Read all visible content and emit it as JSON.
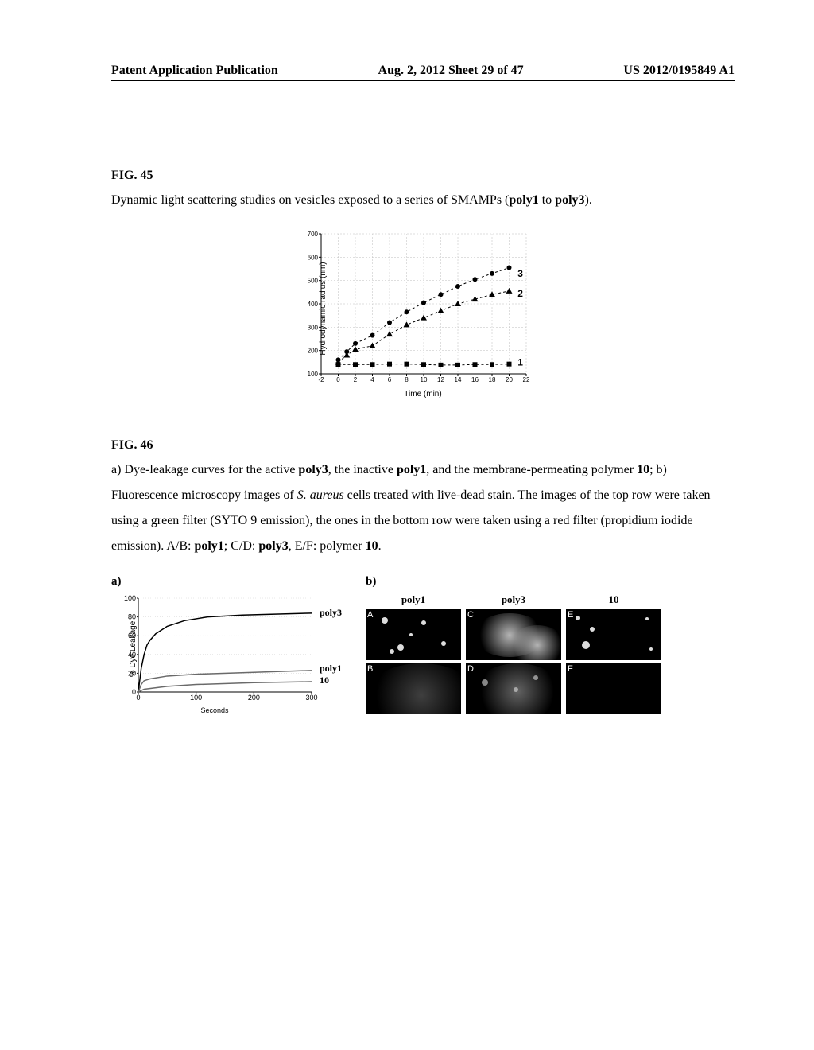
{
  "header": {
    "left": "Patent Application Publication",
    "mid": "Aug. 2, 2012  Sheet 29 of 47",
    "right": "US 2012/0195849 A1"
  },
  "fig45": {
    "label": "FIG. 45",
    "caption_plain_a": "Dynamic light scattering studies on vesicles exposed to a series of SMAMPs (",
    "caption_bold_a": "poly1",
    "caption_plain_b": " to ",
    "caption_bold_b": "poly3",
    "caption_plain_c": ").",
    "chart": {
      "type": "scatter-line",
      "xlabel": "Time (min)",
      "ylabel": "Hydrodynamic radius (nm)",
      "xlim": [
        -2,
        22
      ],
      "ylim": [
        100,
        700
      ],
      "xticks": [
        -2,
        0,
        2,
        4,
        6,
        8,
        10,
        12,
        14,
        16,
        18,
        20,
        22
      ],
      "yticks": [
        100,
        200,
        300,
        400,
        500,
        600,
        700
      ],
      "ytick_labels": [
        "100",
        "200",
        "300",
        "400",
        "500",
        "600",
        "700"
      ],
      "background_color": "#ffffff",
      "grid_color": "#bdbdbd",
      "tick_fontsize": 8,
      "label_fontsize": 10,
      "series": [
        {
          "name": "1",
          "marker": "square",
          "color": "#000000",
          "line_dash": "3,3",
          "points": [
            [
              0,
              140
            ],
            [
              2,
              140
            ],
            [
              4,
              140
            ],
            [
              6,
              142
            ],
            [
              8,
              142
            ],
            [
              10,
              140
            ],
            [
              12,
              138
            ],
            [
              14,
              138
            ],
            [
              16,
              140
            ],
            [
              18,
              140
            ],
            [
              20,
              142
            ]
          ]
        },
        {
          "name": "2",
          "marker": "triangle",
          "color": "#000000",
          "line_dash": "3,3",
          "points": [
            [
              0,
              150
            ],
            [
              1,
              180
            ],
            [
              2,
              205
            ],
            [
              4,
              220
            ],
            [
              6,
              270
            ],
            [
              8,
              310
            ],
            [
              10,
              340
            ],
            [
              12,
              370
            ],
            [
              14,
              400
            ],
            [
              16,
              420
            ],
            [
              18,
              440
            ],
            [
              20,
              455
            ]
          ]
        },
        {
          "name": "3",
          "marker": "circle",
          "color": "#000000",
          "line_dash": "3,3",
          "points": [
            [
              0,
              160
            ],
            [
              1,
              195
            ],
            [
              2,
              230
            ],
            [
              4,
              265
            ],
            [
              6,
              320
            ],
            [
              8,
              365
            ],
            [
              10,
              405
            ],
            [
              12,
              440
            ],
            [
              14,
              475
            ],
            [
              16,
              505
            ],
            [
              18,
              530
            ],
            [
              20,
              555
            ]
          ]
        }
      ],
      "series_labels": [
        {
          "text": "3",
          "x": 21,
          "y": 530
        },
        {
          "text": "2",
          "x": 21,
          "y": 445
        },
        {
          "text": "1",
          "x": 21,
          "y": 150
        }
      ]
    }
  },
  "fig46": {
    "label": "FIG. 46",
    "caption_parts": [
      {
        "t": "a) Dye-leakage curves for the active ",
        "b": false,
        "i": false
      },
      {
        "t": "poly3",
        "b": true,
        "i": false
      },
      {
        "t": ", the inactive ",
        "b": false,
        "i": false
      },
      {
        "t": "poly1",
        "b": true,
        "i": false
      },
      {
        "t": ", and the membrane-permeating polymer ",
        "b": false,
        "i": false
      },
      {
        "t": "10",
        "b": true,
        "i": false
      },
      {
        "t": "; b) Fluorescence microscopy images of ",
        "b": false,
        "i": false
      },
      {
        "t": "S. aureus",
        "b": false,
        "i": true
      },
      {
        "t": " cells treated with live-dead stain. The images of the top row were taken using a green filter (SYTO 9 emission), the ones in the bottom row were taken using a red filter (propidium iodide emission). A/B: ",
        "b": false,
        "i": false
      },
      {
        "t": "poly1",
        "b": true,
        "i": false
      },
      {
        "t": "; C/D: ",
        "b": false,
        "i": false
      },
      {
        "t": "poly3",
        "b": true,
        "i": false
      },
      {
        "t": ", E/F: polymer ",
        "b": false,
        "i": false
      },
      {
        "t": "10",
        "b": true,
        "i": false
      },
      {
        "t": ".",
        "b": false,
        "i": false
      }
    ],
    "panel_a_letter": "a)",
    "panel_b_letter": "b)",
    "chart_a": {
      "type": "line",
      "xlabel": "Seconds",
      "ylabel": "% Dye Leakage",
      "xlim": [
        0,
        300
      ],
      "ylim": [
        0,
        100
      ],
      "xticks": [
        0,
        100,
        200,
        300
      ],
      "yticks": [
        0,
        20,
        40,
        60,
        80,
        100
      ],
      "background_color": "#ffffff",
      "grid_color": "#d0d0d0",
      "tick_fontsize": 9,
      "label_fontsize": 10,
      "series": [
        {
          "name": "poly3",
          "color": "#000000",
          "width": 1.5,
          "points": [
            [
              0,
              0
            ],
            [
              2,
              10
            ],
            [
              5,
              25
            ],
            [
              10,
              40
            ],
            [
              15,
              50
            ],
            [
              20,
              55
            ],
            [
              30,
              62
            ],
            [
              50,
              70
            ],
            [
              80,
              76
            ],
            [
              120,
              80
            ],
            [
              180,
              82
            ],
            [
              300,
              84
            ]
          ]
        },
        {
          "name": "poly1",
          "color": "#6a6a6a",
          "width": 1.5,
          "points": [
            [
              0,
              0
            ],
            [
              5,
              8
            ],
            [
              10,
              12
            ],
            [
              20,
              14
            ],
            [
              50,
              17
            ],
            [
              100,
              19
            ],
            [
              200,
              21
            ],
            [
              300,
              23
            ]
          ]
        },
        {
          "name": "10",
          "color": "#6a6a6a",
          "width": 1.5,
          "points": [
            [
              0,
              0
            ],
            [
              10,
              3
            ],
            [
              50,
              6
            ],
            [
              100,
              8
            ],
            [
              200,
              10
            ],
            [
              300,
              11
            ]
          ]
        }
      ],
      "right_labels": [
        {
          "text": "poly3",
          "y": 84
        },
        {
          "text": "poly1",
          "y": 25
        },
        {
          "text": "10",
          "y": 12
        }
      ]
    },
    "micro": {
      "headers": [
        "poly1",
        "poly3",
        "10"
      ],
      "cells": [
        "A",
        "C",
        "E",
        "B",
        "D",
        "F"
      ]
    }
  }
}
